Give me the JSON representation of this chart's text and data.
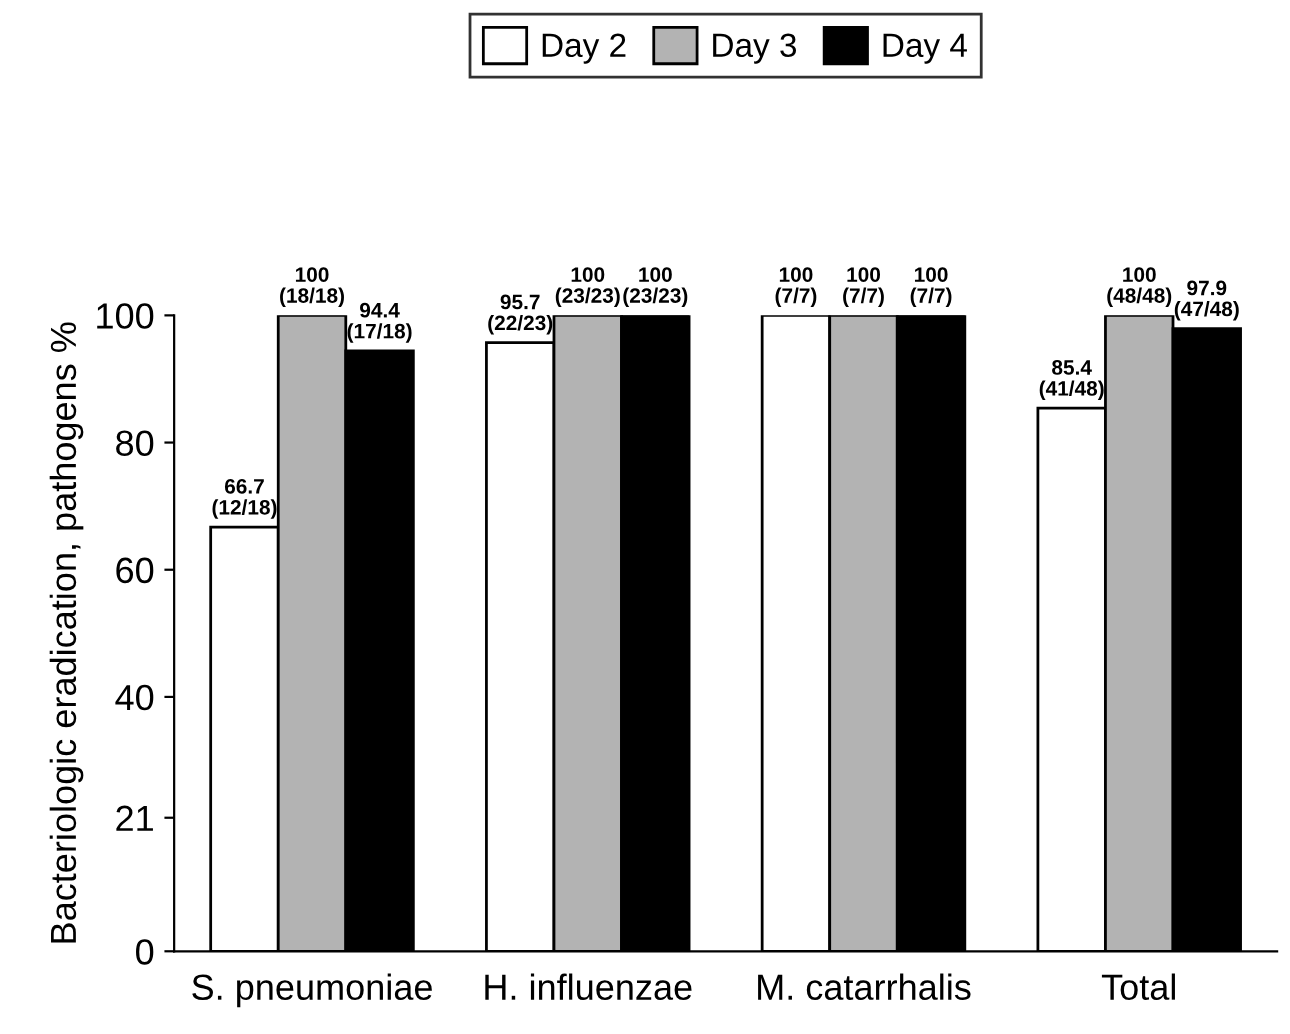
{
  "chart_data": {
    "type": "bar",
    "ylabel": "Bacteriologic eradication, pathogens %",
    "categories": [
      "S. pneumoniae",
      "H. influenzae",
      "M. catarrhalis",
      "Total"
    ],
    "series": [
      {
        "name": "Day 2",
        "color": "#ffffff",
        "values": [
          66.7,
          95.7,
          100,
          85.4
        ],
        "value_labels": [
          "66.7\n(12/18)",
          "95.7\n(22/23)",
          "100\n(7/7)",
          "85.4\n(41/48)"
        ]
      },
      {
        "name": "Day 3",
        "color": "#b3b3b3",
        "values": [
          100,
          100,
          100,
          100
        ],
        "value_labels": [
          "100\n(18/18)",
          "100\n(23/23)",
          "100\n(7/7)",
          "100\n(48/48)"
        ]
      },
      {
        "name": "Day 4",
        "color": "#000000",
        "values": [
          94.4,
          100,
          100,
          97.9
        ],
        "value_labels": [
          "94.4\n(17/18)",
          "100\n(23/23)",
          "100\n(7/7)",
          "97.9\n(47/48)"
        ]
      }
    ],
    "ylim": [
      0,
      100
    ],
    "yticks": [
      0,
      21,
      40,
      60,
      80,
      100
    ],
    "grid": false,
    "legend": "top"
  }
}
